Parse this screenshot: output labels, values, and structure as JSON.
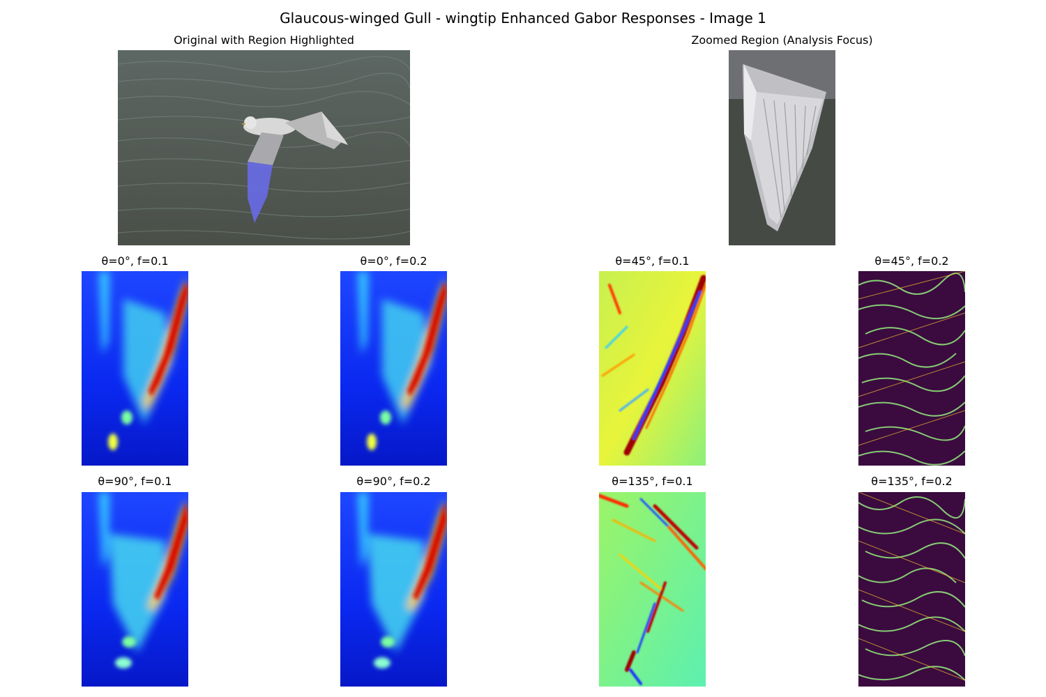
{
  "figure": {
    "title": "Glaucous-winged Gull - wingtip Enhanced Gabor Responses - Image 1"
  },
  "panels": {
    "original": {
      "title": "Original with Region Highlighted"
    },
    "zoomed": {
      "title": "Zoomed Region (Analysis Focus)"
    },
    "gabor": [
      {
        "title": "θ=0°, f=0.1",
        "colormap": "jet"
      },
      {
        "title": "θ=0°, f=0.2",
        "colormap": "jet"
      },
      {
        "title": "θ=45°, f=0.1",
        "colormap": "jet"
      },
      {
        "title": "θ=45°, f=0.2",
        "colormap": "viridis-like"
      },
      {
        "title": "θ=90°, f=0.1",
        "colormap": "jet"
      },
      {
        "title": "θ=90°, f=0.2",
        "colormap": "jet"
      },
      {
        "title": "θ=135°, f=0.1",
        "colormap": "jet"
      },
      {
        "title": "θ=135°, f=0.2",
        "colormap": "viridis-like"
      }
    ]
  },
  "colors": {
    "water": "#4f5650",
    "highlight": "#6a6cf0",
    "jet_low": "#0a1cf5",
    "jet_high": "#b00000",
    "dark_map": "#3b0a3f",
    "dark_map_accent": "#8fe07a"
  }
}
